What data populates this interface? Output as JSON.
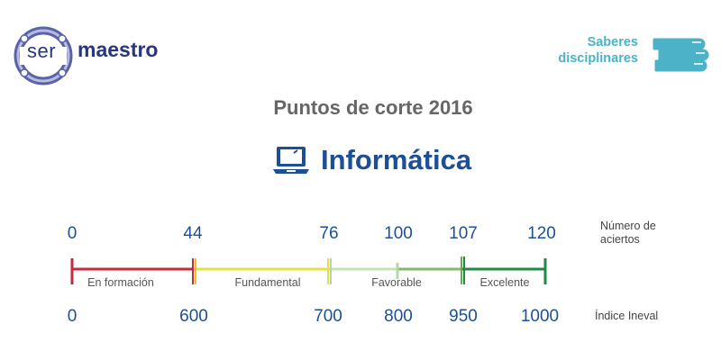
{
  "logo": {
    "prefix": "ser",
    "name": "maestro"
  },
  "badge": {
    "line1": "Saberes",
    "line2": "disciplinares",
    "icon": "stacked-books-icon"
  },
  "title": "Puntos de corte  2016",
  "subject": {
    "name": "Informática",
    "icon": "laptop-icon"
  },
  "scale": {
    "aciertos_label_line1": "Número de",
    "aciertos_label_line2": "aciertos",
    "ineval_label": "Índice Ineval",
    "aciertos": [
      "0",
      "44",
      "76",
      "100",
      "107",
      "120"
    ],
    "ineval": [
      "0",
      "600",
      "700",
      "800",
      "950",
      "1000"
    ],
    "segments": [
      {
        "label": "En formación",
        "color": "#c52a3e",
        "from": 0,
        "to": 44
      },
      {
        "label": "Fundamental",
        "color": "#e6e047",
        "from": 44,
        "to": 76
      },
      {
        "label": "Favorable",
        "color": "#a9cf95",
        "from": 76,
        "to": 107
      },
      {
        "label": "Excelente",
        "color": "#1f8a45",
        "from": 107,
        "to": 120
      }
    ]
  }
}
